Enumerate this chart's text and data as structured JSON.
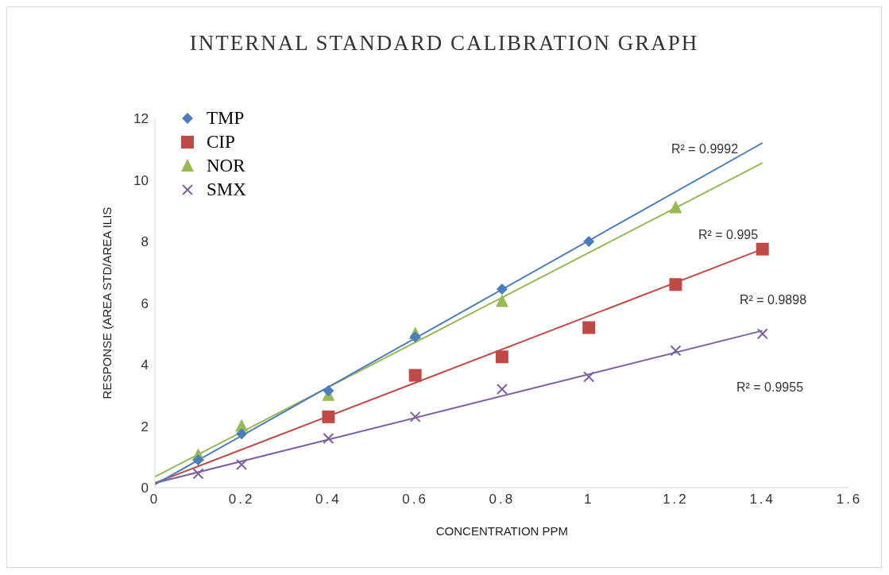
{
  "chart_data": {
    "type": "scatter",
    "title": "INTERNAL STANDARD CALIBRATION GRAPH",
    "xlabel": "CONCENTRATION PPM",
    "ylabel": "RESPONSE (AREA STD/AREA ILIS",
    "xlim": [
      0,
      1.6
    ],
    "xticks": [
      0,
      0.2,
      0.4,
      0.6,
      0.8,
      1,
      1.2,
      1.4,
      1.6
    ],
    "ylim": [
      0,
      12
    ],
    "yticks": [
      0,
      2,
      4,
      6,
      8,
      10,
      12
    ],
    "grid": false,
    "legend": "top left",
    "series": [
      {
        "name": "TMP",
        "color": "#4a7ebb",
        "marker": "diamond",
        "x": [
          0.1,
          0.2,
          0.4,
          0.6,
          0.8,
          1
        ],
        "values": [
          0.9,
          1.75,
          3.15,
          4.9,
          6.45,
          8.0
        ]
      },
      {
        "name": "CIP",
        "color": "#be4b48",
        "marker": "square",
        "x": [
          0.4,
          0.6,
          0.8,
          1,
          1.2,
          1.4
        ],
        "values": [
          2.3,
          3.65,
          4.25,
          5.2,
          6.6,
          7.75
        ]
      },
      {
        "name": "NOR",
        "color": "#98b954",
        "marker": "triangle",
        "x": [
          0.1,
          0.2,
          0.4,
          0.6,
          0.8,
          1.2
        ],
        "values": [
          1.05,
          2.0,
          3.0,
          5.0,
          6.05,
          9.1
        ]
      },
      {
        "name": "SMX",
        "color": "#7d60a0",
        "marker": "cross",
        "x": [
          0.1,
          0.2,
          0.4,
          0.6,
          0.8,
          1,
          1.2,
          1.4
        ],
        "values": [
          0.45,
          0.75,
          1.6,
          2.3,
          3.2,
          3.6,
          4.45,
          5.0
        ]
      },
      {
        "type": "line",
        "color": "#4a7ebb",
        "marker": "none",
        "x": [
          0,
          1.4
        ],
        "values": [
          0.1,
          11.2
        ]
      },
      {
        "type": "line",
        "color": "#be4b48",
        "marker": "none",
        "x": [
          0,
          1.4
        ],
        "values": [
          0.15,
          7.75
        ]
      },
      {
        "type": "line",
        "color": "#98b954",
        "marker": "none",
        "x": [
          0,
          1.4
        ],
        "values": [
          0.35,
          10.55
        ]
      },
      {
        "type": "line",
        "color": "#7d60a0",
        "marker": "none",
        "x": [
          0,
          1.4
        ],
        "values": [
          0.15,
          5.1
        ]
      }
    ],
    "annotations": [
      "R² = 0.9992",
      "R² = 0.995",
      "R² = 0.9898",
      "R² = 0.9955"
    ]
  }
}
